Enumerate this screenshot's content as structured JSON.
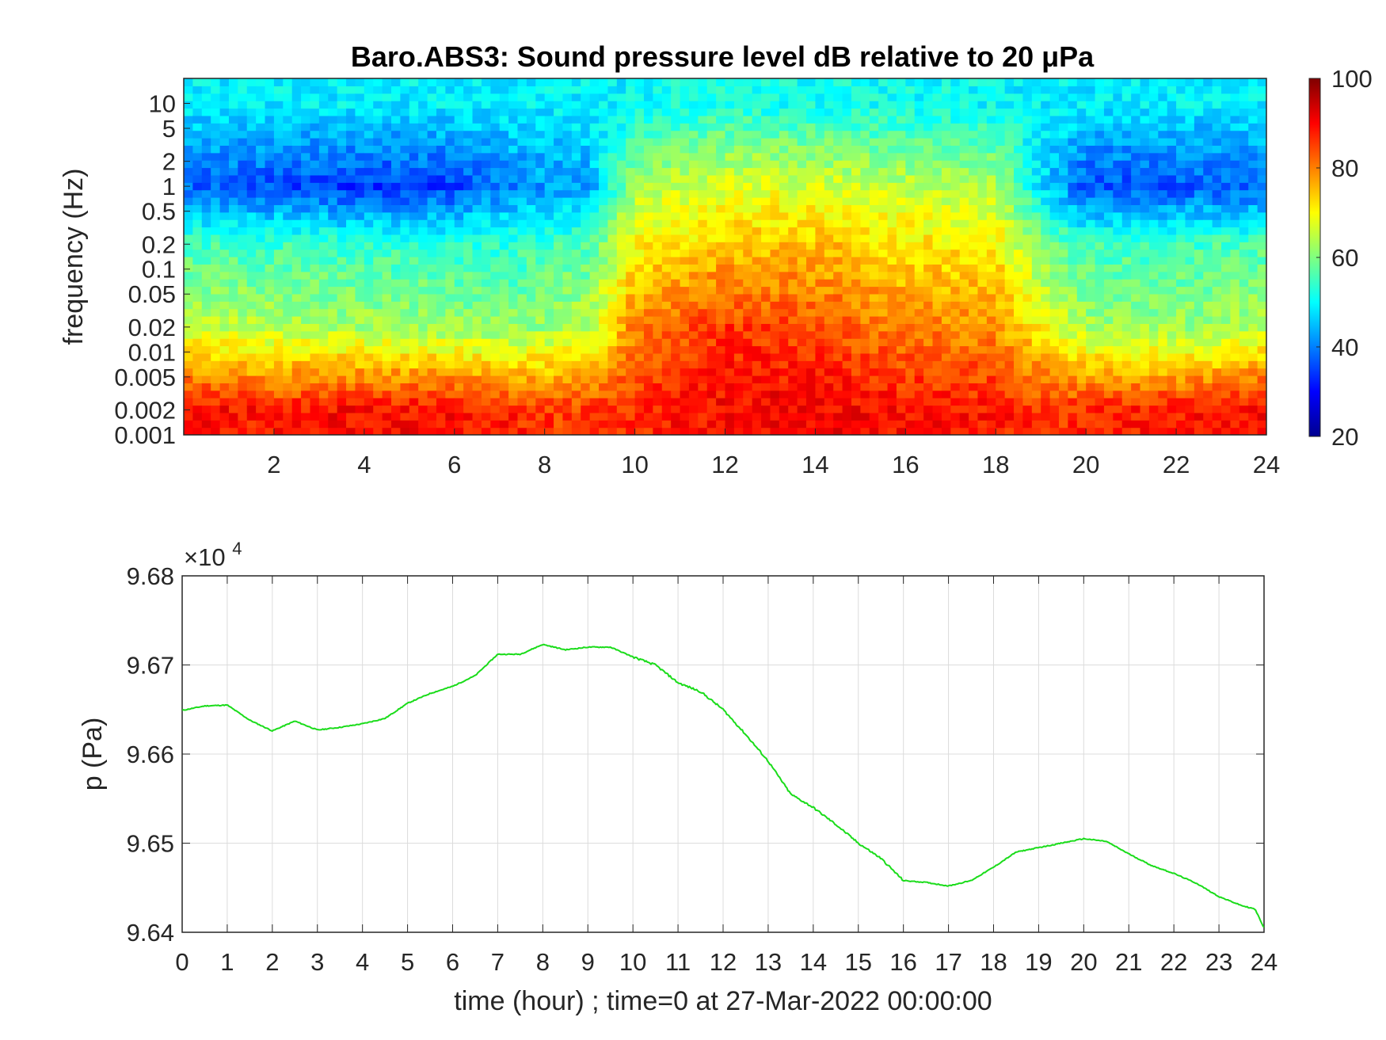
{
  "chart_data": [
    {
      "type": "heatmap",
      "title": "Baro.ABS3: Sound pressure level dB relative to 20 μPa",
      "xlabel": "",
      "ylabel": "frequency (Hz)",
      "xlim": [
        0,
        24
      ],
      "x_ticks": [
        2,
        4,
        6,
        8,
        10,
        12,
        14,
        16,
        18,
        20,
        22,
        24
      ],
      "x_tick_labels": [
        "2",
        "4",
        "6",
        "8",
        "10",
        "12",
        "14",
        "16",
        "18",
        "20",
        "22",
        "24"
      ],
      "y_scale": "log",
      "ylim": [
        0.001,
        20
      ],
      "y_ticks": [
        0.001,
        0.002,
        0.005,
        0.01,
        0.02,
        0.05,
        0.1,
        0.2,
        0.5,
        1,
        2,
        5,
        10
      ],
      "y_tick_labels": [
        "0.001",
        "0.002",
        "0.005",
        "0.01",
        "0.02",
        "0.05",
        "0.1",
        "0.2",
        "0.5",
        "1",
        "2",
        "5",
        "10"
      ],
      "colormap": "jet",
      "clim": [
        20,
        100
      ],
      "colorbar_ticks": [
        20,
        40,
        60,
        80,
        100
      ],
      "colorbar_tick_labels": [
        "20",
        "40",
        "60",
        "80",
        "100"
      ],
      "level_profile_db": {
        "hours": [
          0,
          2,
          4,
          6,
          7,
          8,
          9,
          10,
          12,
          14,
          16,
          18,
          19,
          20,
          22,
          24
        ],
        "at_0.002Hz": [
          90,
          88,
          90,
          89,
          88,
          86,
          85,
          87,
          90,
          91,
          89,
          88,
          86,
          87,
          88,
          90
        ],
        "at_0.02Hz": [
          66,
          64,
          63,
          62,
          61,
          62,
          65,
          80,
          86,
          84,
          80,
          79,
          70,
          63,
          62,
          64
        ],
        "at_0.2Hz": [
          55,
          55,
          54,
          54,
          53,
          55,
          56,
          70,
          74,
          75,
          72,
          71,
          60,
          55,
          55,
          56
        ],
        "at_1Hz": [
          38,
          36,
          34,
          35,
          40,
          42,
          43,
          64,
          68,
          67,
          65,
          64,
          48,
          36,
          36,
          38
        ],
        "at_10Hz": [
          49,
          49,
          49,
          49,
          49,
          49,
          49,
          50,
          52,
          51,
          51,
          50,
          49,
          49,
          49,
          49
        ]
      }
    },
    {
      "type": "line",
      "title": "",
      "xlabel": "time (hour) ; time=0 at 27-Mar-2022 00:00:00",
      "ylabel": "p (Pa)",
      "y_exponent_label": "×10",
      "y_exponent_power": "4",
      "xlim": [
        0,
        24
      ],
      "ylim": [
        96400,
        96800
      ],
      "grid": true,
      "x_ticks": [
        0,
        1,
        2,
        3,
        4,
        5,
        6,
        7,
        8,
        9,
        10,
        11,
        12,
        13,
        14,
        15,
        16,
        17,
        18,
        19,
        20,
        21,
        22,
        23,
        24
      ],
      "x_tick_labels": [
        "0",
        "1",
        "2",
        "3",
        "4",
        "5",
        "6",
        "7",
        "8",
        "9",
        "10",
        "11",
        "12",
        "13",
        "14",
        "15",
        "16",
        "17",
        "18",
        "19",
        "20",
        "21",
        "22",
        "23",
        "24"
      ],
      "y_ticks": [
        96400,
        96500,
        96600,
        96700,
        96800
      ],
      "y_tick_labels": [
        "9.64",
        "9.65",
        "9.66",
        "9.67",
        "9.68"
      ],
      "series": [
        {
          "color": "#1adc1a",
          "x": [
            0,
            0.5,
            1,
            1.5,
            2,
            2.5,
            3,
            3.5,
            4,
            4.5,
            5,
            5.5,
            6,
            6.5,
            7,
            7.5,
            8,
            8.5,
            9,
            9.5,
            10,
            10.5,
            11,
            11.5,
            12,
            12.5,
            13,
            13.5,
            14,
            14.5,
            15,
            15.5,
            16,
            16.5,
            17,
            17.5,
            18,
            18.5,
            19,
            19.5,
            20,
            20.5,
            21,
            21.5,
            22,
            22.5,
            23,
            23.5,
            23.8,
            24
          ],
          "y": [
            96649,
            96654,
            96655,
            96638,
            96626,
            96637,
            96627,
            96630,
            96634,
            96640,
            96657,
            96668,
            96676,
            96688,
            96712,
            96712,
            96723,
            96717,
            96720,
            96720,
            96709,
            96700,
            96680,
            96670,
            96650,
            96622,
            96592,
            96555,
            96540,
            96521,
            96500,
            96483,
            96458,
            96456,
            96452,
            96458,
            96473,
            96490,
            96495,
            96500,
            96505,
            96502,
            96488,
            96475,
            96466,
            96455,
            96440,
            96430,
            96426,
            96405
          ]
        }
      ]
    }
  ]
}
